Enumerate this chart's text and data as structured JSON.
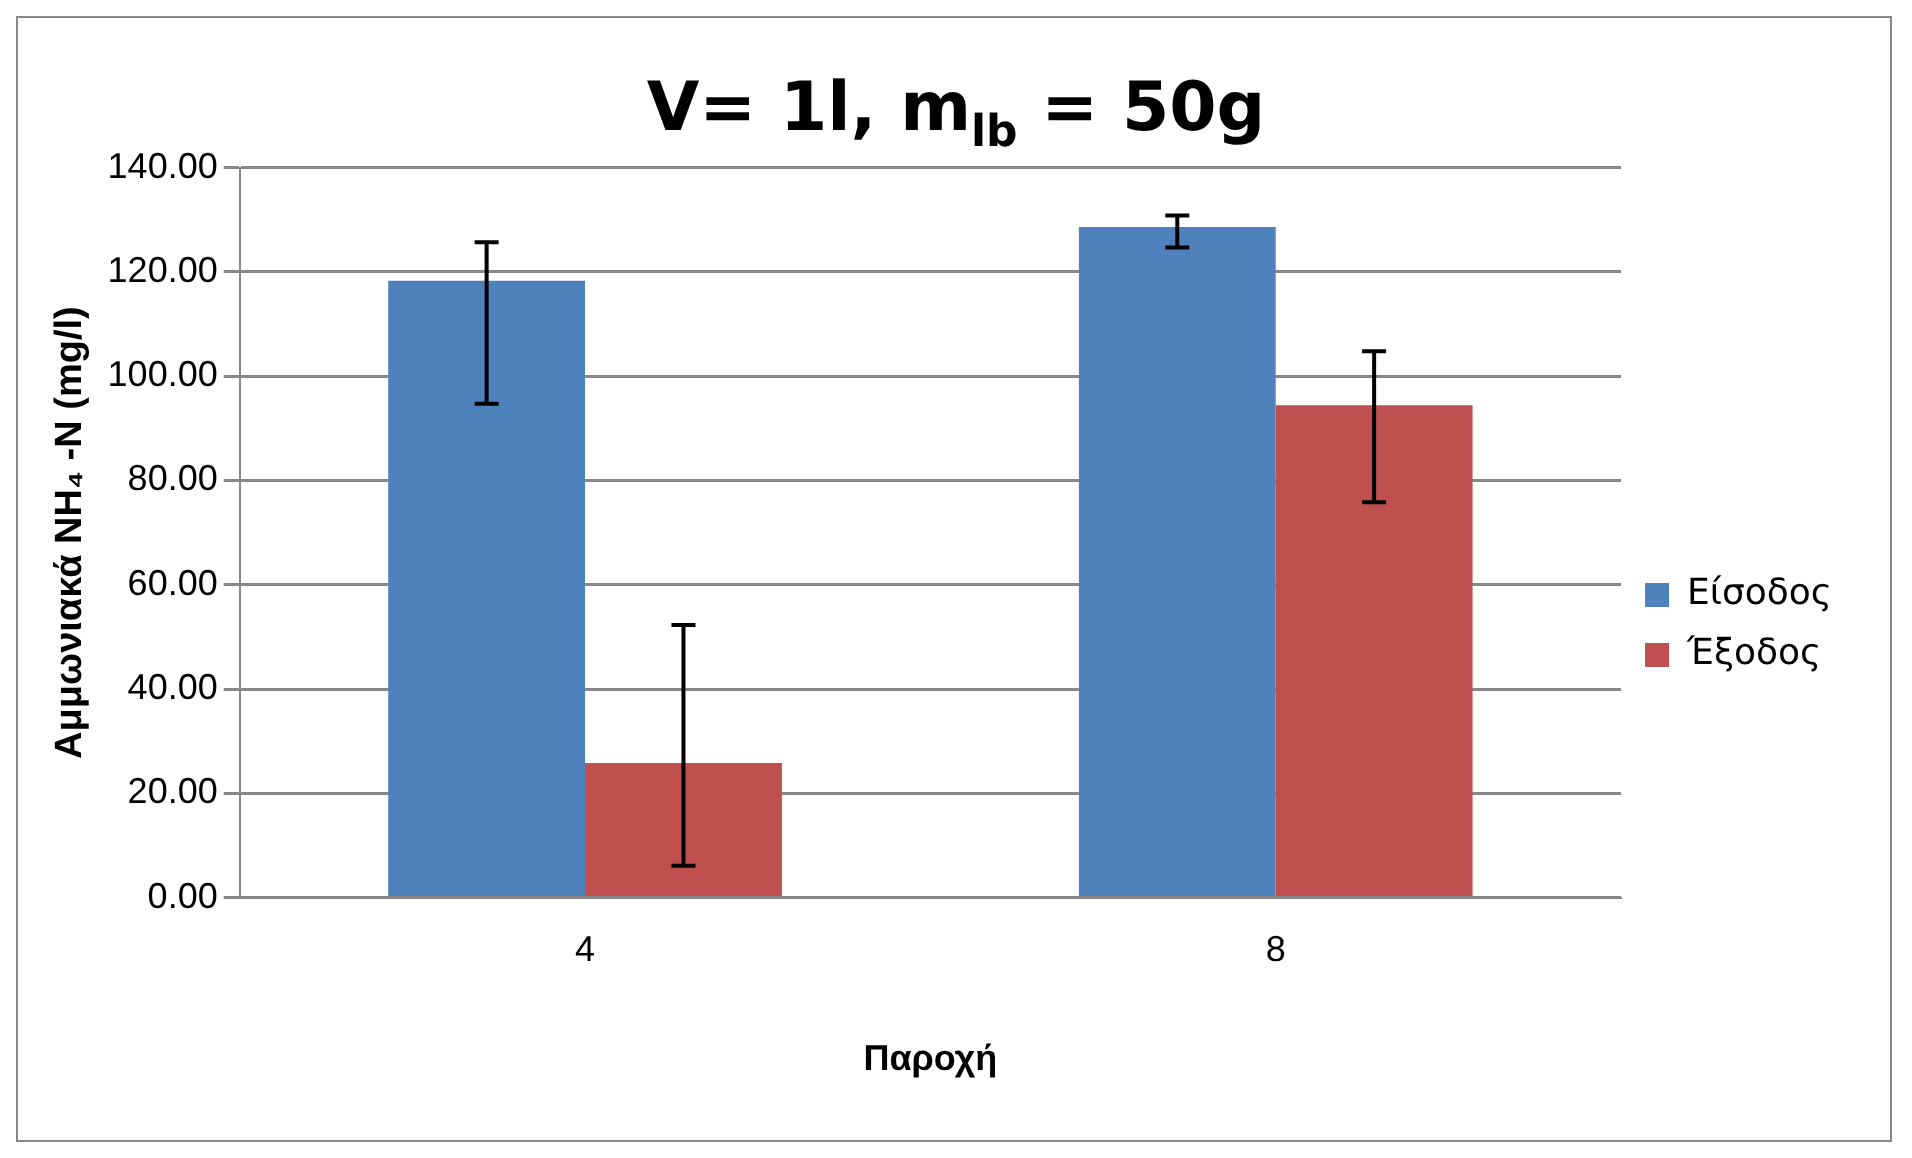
{
  "chart_data": {
    "type": "bar",
    "title": "V= 1l, m$_{lb}$ = 50g",
    "xlabel": "Παροχή",
    "ylabel": "Αμμωνιακά NH₄ -N (mg/l)",
    "categories": [
      "4",
      "8"
    ],
    "series": [
      {
        "name": "Είσοδος",
        "color": "#4f81bd",
        "values": [
          118.3,
          128.6
        ],
        "errors": [
          [
            94.7,
            125.7
          ],
          [
            124.7,
            130.8
          ]
        ]
      },
      {
        "name": "Έξοδος",
        "color": "#c0504d",
        "values": [
          25.8,
          94.4
        ],
        "errors": [
          [
            6.1,
            52.3
          ],
          [
            75.8,
            104.8
          ]
        ]
      }
    ],
    "ylim": [
      0,
      140
    ],
    "yticks": [
      {
        "value": 0,
        "label": "0.00"
      },
      {
        "value": 20,
        "label": "20.00"
      },
      {
        "value": 40,
        "label": "40.00"
      },
      {
        "value": 60,
        "label": "60.00"
      },
      {
        "value": 80,
        "label": "80.00"
      },
      {
        "value": 100,
        "label": "100.00"
      },
      {
        "value": 120,
        "label": "120.00"
      },
      {
        "value": 140,
        "label": "140.00"
      }
    ],
    "grid": "y",
    "legend": "right"
  }
}
